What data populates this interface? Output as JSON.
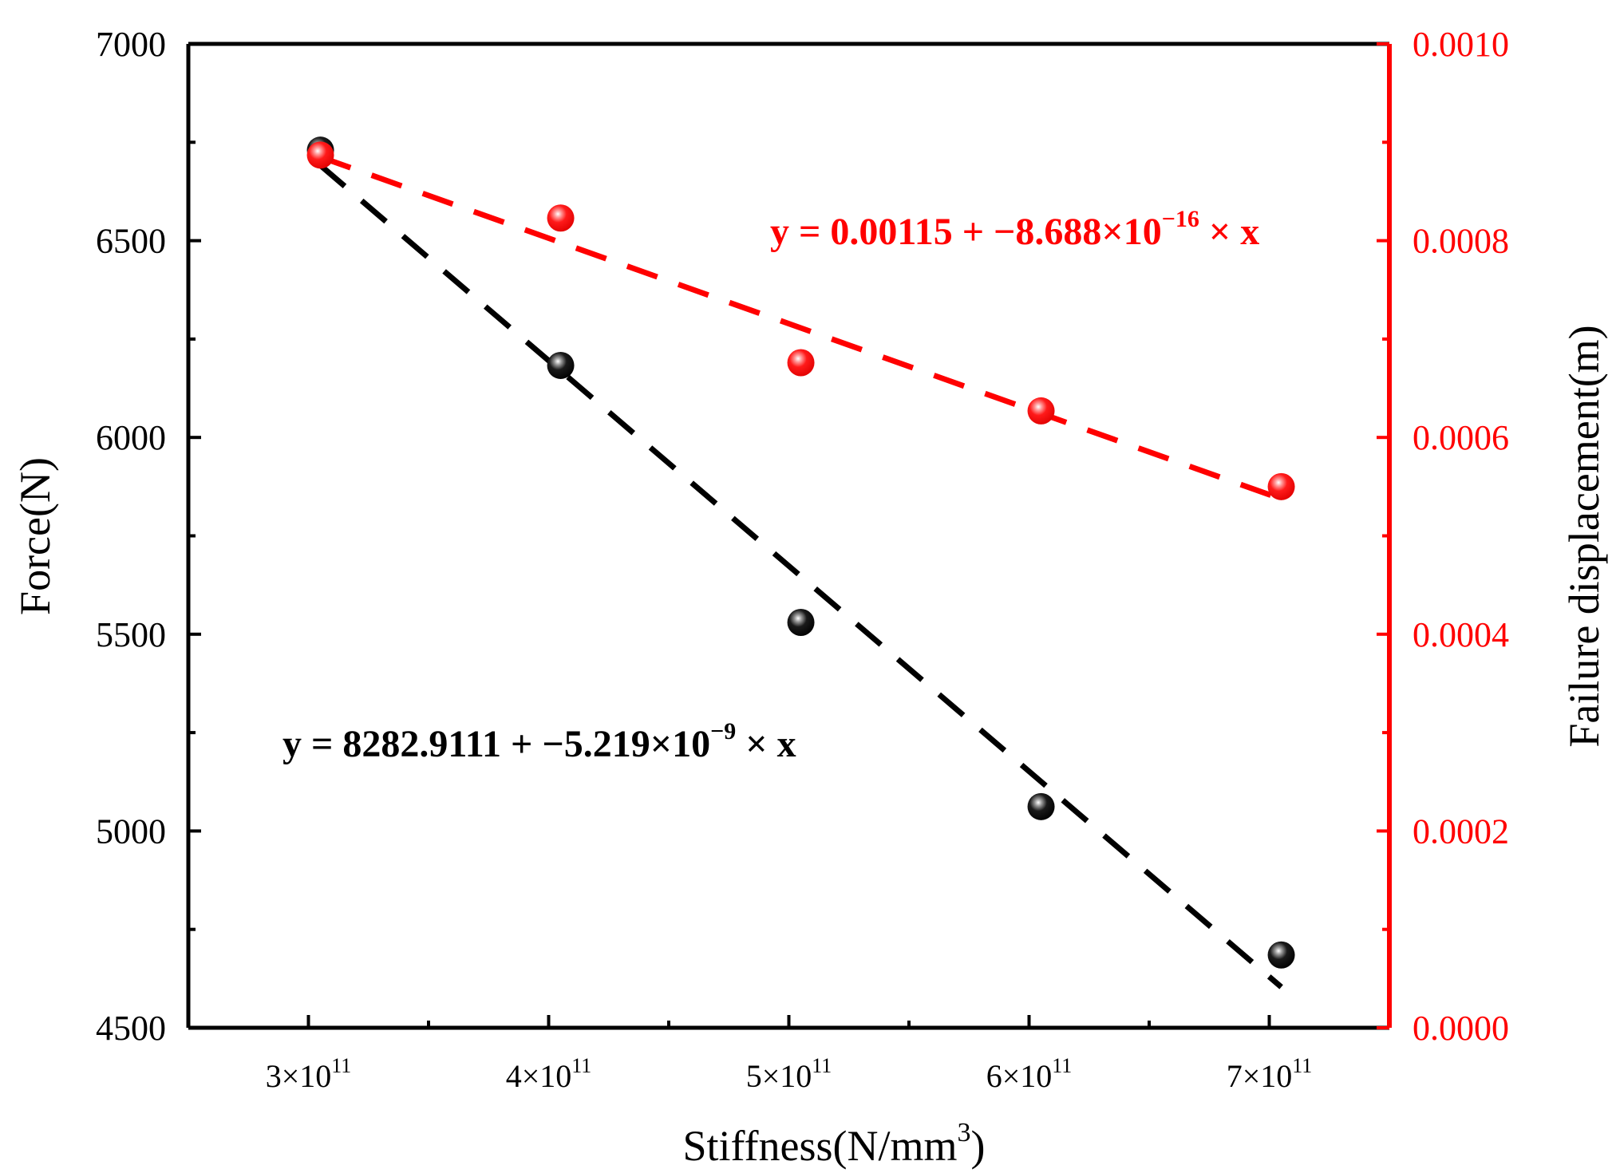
{
  "chart_data": {
    "type": "scatter",
    "x_axis": {
      "label": "Stiffness(N/mm",
      "label_sup": "3",
      "label_suffix": ")",
      "range": [
        250000000000,
        750000000000
      ],
      "ticks": [
        {
          "value": 300000000000,
          "base": "3×10",
          "exp": "11"
        },
        {
          "value": 400000000000,
          "base": "4×10",
          "exp": "11"
        },
        {
          "value": 500000000000,
          "base": "5×10",
          "exp": "11"
        },
        {
          "value": 600000000000,
          "base": "6×10",
          "exp": "11"
        },
        {
          "value": 700000000000,
          "base": "7×10",
          "exp": "11"
        }
      ],
      "minor_ticks": [
        350000000000,
        450000000000,
        550000000000,
        650000000000
      ]
    },
    "y_left": {
      "label": "Force(N)",
      "range": [
        4500,
        7000
      ],
      "ticks": [
        "4500",
        "5000",
        "5500",
        "6000",
        "6500",
        "7000"
      ],
      "minor_ticks": [
        4750,
        5250,
        5750,
        6250,
        6750
      ],
      "color": "#000000"
    },
    "y_right": {
      "label": "Failure displacement(m)",
      "range": [
        0.0,
        0.001
      ],
      "ticks": [
        "0.0000",
        "0.0002",
        "0.0004",
        "0.0006",
        "0.0008",
        "0.0010"
      ],
      "minor_ticks": [
        0.0001,
        0.0003,
        0.0005,
        0.0007,
        0.0009
      ],
      "color": "#ff0000"
    },
    "series": [
      {
        "name": "Force",
        "axis": "left",
        "color": "#000000",
        "points": [
          {
            "x": 305000000000,
            "y": 6730
          },
          {
            "x": 405000000000,
            "y": 6183
          },
          {
            "x": 505000000000,
            "y": 5530
          },
          {
            "x": 605000000000,
            "y": 5062
          },
          {
            "x": 705000000000,
            "y": 4685
          }
        ],
        "fit": {
          "intercept": 8282.9111,
          "slope": -5.219e-09,
          "x_range": [
            305000000000,
            705000000000
          ],
          "equation_main": "y = 8282.9111 + −5.219×10",
          "equation_exp": "−9",
          "equation_tail": " × x"
        }
      },
      {
        "name": "Failure displacement",
        "axis": "right",
        "color": "#ff0000",
        "points": [
          {
            "x": 305000000000,
            "y": 0.000887
          },
          {
            "x": 405000000000,
            "y": 0.000823
          },
          {
            "x": 505000000000,
            "y": 0.000676
          },
          {
            "x": 605000000000,
            "y": 0.000627
          },
          {
            "x": 705000000000,
            "y": 0.00055
          }
        ],
        "fit": {
          "intercept": 0.00115,
          "slope": -8.688e-16,
          "x_range": [
            305000000000,
            705000000000
          ],
          "equation_main": "y = 0.00115 + −8.688×10",
          "equation_exp": "−16",
          "equation_tail": " × x"
        }
      }
    ]
  }
}
